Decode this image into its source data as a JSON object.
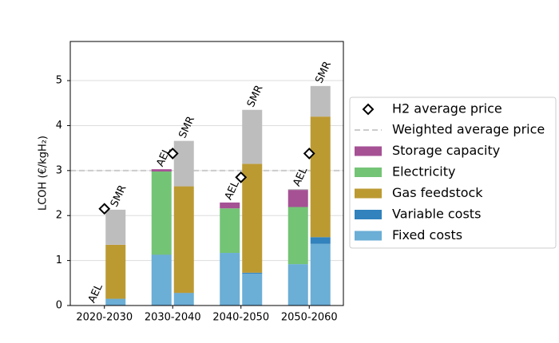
{
  "chart_data": {
    "type": "stacked-bar",
    "ylabel": "LCOH (€/kgH₂)",
    "categories": [
      "2020-2030",
      "2030-2040",
      "2040-2050",
      "2050-2060"
    ],
    "bar_labels": [
      "AEL",
      "SMR"
    ],
    "ylim": [
      0,
      5.87
    ],
    "yticks": [
      0,
      1,
      2,
      3,
      4,
      5
    ],
    "grid": true,
    "series": [
      {
        "name": "Fixed costs",
        "color": "#6baed6",
        "values": [
          [
            0,
            0.15
          ],
          [
            1.12,
            0.27
          ],
          [
            1.17,
            0.71
          ],
          [
            0.92,
            1.37
          ]
        ]
      },
      {
        "name": "Variable costs",
        "color": "#3182bd",
        "values": [
          [
            0,
            0
          ],
          [
            0.01,
            0.01
          ],
          [
            0,
            0.02
          ],
          [
            0,
            0.15
          ]
        ]
      },
      {
        "name": "Gas feedstock",
        "color": "#bc9a32",
        "values": [
          [
            0,
            1.2
          ],
          [
            0,
            2.37
          ],
          [
            0,
            2.42
          ],
          [
            0,
            2.68
          ]
        ]
      },
      {
        "name": "Electricity",
        "color": "#74c476",
        "values": [
          [
            0,
            0
          ],
          [
            1.85,
            0
          ],
          [
            0.99,
            0
          ],
          [
            1.27,
            0
          ]
        ]
      },
      {
        "name": "Storage capacity",
        "color": "#a55194",
        "values": [
          [
            0,
            0
          ],
          [
            0.05,
            0
          ],
          [
            0.13,
            0
          ],
          [
            0.38,
            0
          ]
        ]
      },
      {
        "color": "#bdbdbd",
        "values": [
          [
            0,
            0.78
          ],
          [
            0,
            1.01
          ],
          [
            0,
            1.2
          ],
          [
            0.02,
            0.68
          ]
        ]
      }
    ],
    "price_markers": {
      "name": "H2 average price",
      "values": [
        2.15,
        3.38,
        2.85,
        3.38
      ]
    },
    "reference_line": {
      "name": "Weighted average price",
      "value": 3.0,
      "color": "#cccccc"
    }
  }
}
